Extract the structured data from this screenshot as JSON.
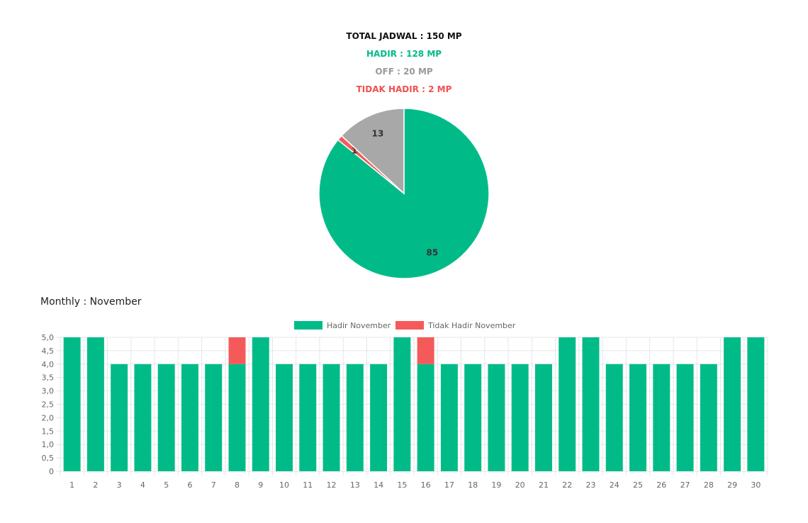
{
  "summary": {
    "total": "TOTAL JADWAL : 150 MP",
    "hadir": "HADIR : 128 MP",
    "off": "OFF : 20 MP",
    "tidak_hadir": "TIDAK HADIR : 2 MP"
  },
  "monthly_title": "Monthly : November",
  "colors": {
    "hadir": "#00bb88",
    "tidak_hadir": "#f55a5a",
    "off": "#a8a8a8"
  },
  "chart_data": [
    {
      "type": "pie",
      "slices": [
        {
          "label": "85",
          "value": 85,
          "color": "#00bb88"
        },
        {
          "label": "1",
          "value": 1,
          "color": "#f55a5a"
        },
        {
          "label": "13",
          "value": 13,
          "color": "#a8a8a8"
        }
      ]
    },
    {
      "type": "bar",
      "stacked": true,
      "categories": [
        "1",
        "2",
        "3",
        "4",
        "5",
        "6",
        "7",
        "8",
        "9",
        "10",
        "11",
        "12",
        "13",
        "14",
        "15",
        "16",
        "17",
        "18",
        "19",
        "20",
        "21",
        "22",
        "23",
        "24",
        "25",
        "26",
        "27",
        "28",
        "29",
        "30"
      ],
      "series": [
        {
          "name": "Hadir November",
          "color": "#00bb88",
          "values": [
            5,
            5,
            4,
            4,
            4,
            4,
            4,
            4,
            5,
            4,
            4,
            4,
            4,
            4,
            5,
            4,
            4,
            4,
            4,
            4,
            4,
            5,
            5,
            4,
            4,
            4,
            4,
            4,
            5,
            5
          ]
        },
        {
          "name": "Tidak Hadir November",
          "color": "#f55a5a",
          "values": [
            0,
            0,
            0,
            0,
            0,
            0,
            0,
            1,
            0,
            0,
            0,
            0,
            0,
            0,
            0,
            1,
            0,
            0,
            0,
            0,
            0,
            0,
            0,
            0,
            0,
            0,
            0,
            0,
            0,
            0
          ]
        }
      ],
      "ylim": [
        0,
        5
      ],
      "yticks": [
        "0",
        "0,5",
        "1,0",
        "1,5",
        "2,0",
        "2,5",
        "3,0",
        "3,5",
        "4,0",
        "4,5",
        "5,0"
      ],
      "legend": "top-center",
      "grid": true
    }
  ]
}
